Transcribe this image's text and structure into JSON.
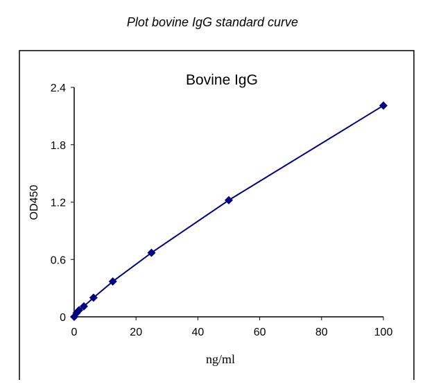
{
  "caption": "Plot bovine IgG standard curve",
  "chart_data": {
    "type": "scatter",
    "title": "Bovine IgG",
    "xlabel": "ng/ml",
    "ylabel": "OD450",
    "xlim": [
      0,
      100
    ],
    "ylim": [
      0,
      2.4
    ],
    "xticks": [
      "0",
      "20",
      "40",
      "60",
      "80",
      "100"
    ],
    "yticks": [
      "0",
      "0.6",
      "1.2",
      "1.8",
      "2.4"
    ],
    "grid": false,
    "series": [
      {
        "x": [
          0,
          0.78,
          1.56,
          3.125,
          6.25,
          12.5,
          25,
          50,
          100
        ],
        "y": [
          0,
          0.04,
          0.07,
          0.11,
          0.2,
          0.37,
          0.67,
          1.22,
          2.21
        ]
      }
    ],
    "colors": {
      "series": "#000080"
    }
  }
}
